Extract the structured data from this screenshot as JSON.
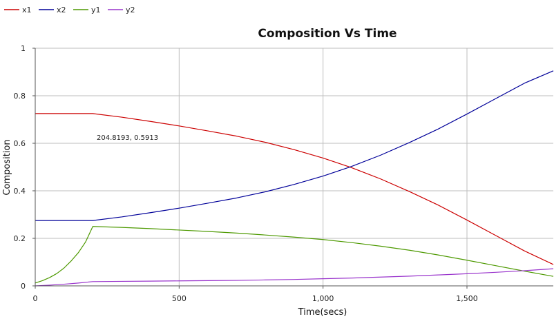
{
  "chart_data": {
    "type": "line",
    "title": "Composition Vs Time",
    "xlabel": "Time(secs)",
    "ylabel": "Composition",
    "xlim": [
      0,
      1800
    ],
    "ylim": [
      0,
      1
    ],
    "xticks": [
      0,
      500,
      1000,
      1500
    ],
    "xtick_labels": [
      "0",
      "500",
      "1,000",
      "1,500"
    ],
    "yticks": [
      0,
      0.2,
      0.4,
      0.6,
      0.8,
      1
    ],
    "ytick_labels": [
      "0",
      "0.2",
      "0.4",
      "0.6",
      "0.8",
      "1"
    ],
    "grid": true,
    "legend_position": "top-left",
    "annotation": {
      "text": "204.8193, 0.5913",
      "x": 204.8193,
      "y": 0.5913
    },
    "series": [
      {
        "name": "x1",
        "color": "#cc0000",
        "x": [
          0,
          100,
          200,
          300,
          400,
          500,
          600,
          700,
          800,
          900,
          1000,
          1100,
          1200,
          1300,
          1400,
          1500,
          1600,
          1700,
          1800
        ],
        "y": [
          0.725,
          0.725,
          0.725,
          0.71,
          0.692,
          0.673,
          0.652,
          0.63,
          0.604,
          0.573,
          0.538,
          0.497,
          0.45,
          0.397,
          0.34,
          0.277,
          0.212,
          0.147,
          0.09
        ]
      },
      {
        "name": "x2",
        "color": "#000099",
        "x": [
          0,
          100,
          200,
          300,
          400,
          500,
          600,
          700,
          800,
          900,
          1000,
          1100,
          1200,
          1300,
          1400,
          1500,
          1600,
          1700,
          1800
        ],
        "y": [
          0.275,
          0.275,
          0.275,
          0.29,
          0.308,
          0.327,
          0.348,
          0.37,
          0.396,
          0.427,
          0.462,
          0.503,
          0.55,
          0.603,
          0.66,
          0.723,
          0.788,
          0.853,
          0.905
        ]
      },
      {
        "name": "y1",
        "color": "#4d9900",
        "x": [
          0,
          25,
          50,
          75,
          100,
          125,
          150,
          175,
          200,
          300,
          400,
          500,
          600,
          700,
          800,
          900,
          1000,
          1100,
          1200,
          1300,
          1400,
          1500,
          1600,
          1700,
          1800
        ],
        "y": [
          0.012,
          0.022,
          0.035,
          0.052,
          0.075,
          0.105,
          0.14,
          0.185,
          0.25,
          0.246,
          0.241,
          0.235,
          0.229,
          0.222,
          0.214,
          0.205,
          0.195,
          0.182,
          0.167,
          0.15,
          0.13,
          0.108,
          0.085,
          0.062,
          0.04
        ]
      },
      {
        "name": "y2",
        "color": "#9933cc",
        "x": [
          0,
          50,
          100,
          150,
          200,
          300,
          400,
          500,
          600,
          700,
          800,
          900,
          1000,
          1100,
          1200,
          1300,
          1400,
          1500,
          1600,
          1700,
          1800
        ],
        "y": [
          0.0,
          0.003,
          0.007,
          0.012,
          0.018,
          0.019,
          0.02,
          0.021,
          0.022,
          0.023,
          0.025,
          0.027,
          0.03,
          0.033,
          0.037,
          0.041,
          0.046,
          0.051,
          0.057,
          0.064,
          0.072
        ]
      }
    ]
  }
}
